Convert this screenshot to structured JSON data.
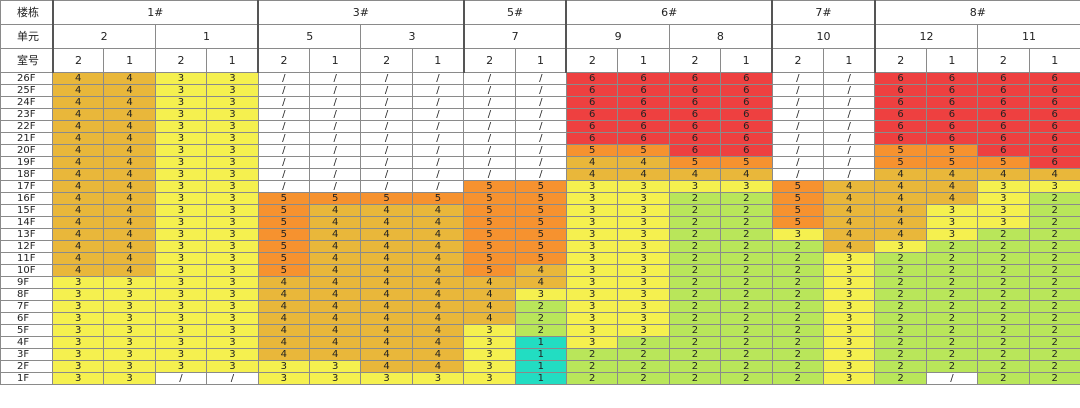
{
  "header_labels": {
    "building": "楼栋",
    "unit": "单元",
    "room": "室号"
  },
  "buildings": [
    {
      "name": "1#",
      "units": [
        {
          "name": "2",
          "rooms": [
            "2",
            "1"
          ]
        },
        {
          "name": "1",
          "rooms": [
            "2",
            "1"
          ]
        }
      ]
    },
    {
      "name": "3#",
      "units": [
        {
          "name": "5",
          "rooms": [
            "2",
            "1"
          ]
        },
        {
          "name": "3",
          "rooms": [
            "2",
            "1"
          ]
        }
      ]
    },
    {
      "name": "5#",
      "units": [
        {
          "name": "7",
          "rooms": [
            "2",
            "1"
          ]
        }
      ]
    },
    {
      "name": "6#",
      "units": [
        {
          "name": "9",
          "rooms": [
            "2",
            "1"
          ]
        },
        {
          "name": "8",
          "rooms": [
            "2",
            "1"
          ]
        }
      ]
    },
    {
      "name": "7#",
      "units": [
        {
          "name": "10",
          "rooms": [
            "2",
            "1"
          ]
        }
      ]
    },
    {
      "name": "8#",
      "units": [
        {
          "name": "12",
          "rooms": [
            "2",
            "1"
          ]
        },
        {
          "name": "11",
          "rooms": [
            "2",
            "1"
          ]
        }
      ]
    }
  ],
  "floors": [
    {
      "label": "26F",
      "cells": [
        "4",
        "4",
        "3",
        "3",
        "/",
        "/",
        "/",
        "/",
        "/",
        "/",
        "6",
        "6",
        "6",
        "6",
        "/",
        "/",
        "6",
        "6",
        "6",
        "6"
      ]
    },
    {
      "label": "25F",
      "cells": [
        "4",
        "4",
        "3",
        "3",
        "/",
        "/",
        "/",
        "/",
        "/",
        "/",
        "6",
        "6",
        "6",
        "6",
        "/",
        "/",
        "6",
        "6",
        "6",
        "6"
      ]
    },
    {
      "label": "24F",
      "cells": [
        "4",
        "4",
        "3",
        "3",
        "/",
        "/",
        "/",
        "/",
        "/",
        "/",
        "6",
        "6",
        "6",
        "6",
        "/",
        "/",
        "6",
        "6",
        "6",
        "6"
      ]
    },
    {
      "label": "23F",
      "cells": [
        "4",
        "4",
        "3",
        "3",
        "/",
        "/",
        "/",
        "/",
        "/",
        "/",
        "6",
        "6",
        "6",
        "6",
        "/",
        "/",
        "6",
        "6",
        "6",
        "6"
      ]
    },
    {
      "label": "22F",
      "cells": [
        "4",
        "4",
        "3",
        "3",
        "/",
        "/",
        "/",
        "/",
        "/",
        "/",
        "6",
        "6",
        "6",
        "6",
        "/",
        "/",
        "6",
        "6",
        "6",
        "6"
      ]
    },
    {
      "label": "21F",
      "cells": [
        "4",
        "4",
        "3",
        "3",
        "/",
        "/",
        "/",
        "/",
        "/",
        "/",
        "6",
        "6",
        "6",
        "6",
        "/",
        "/",
        "6",
        "6",
        "6",
        "6"
      ]
    },
    {
      "label": "20F",
      "cells": [
        "4",
        "4",
        "3",
        "3",
        "/",
        "/",
        "/",
        "/",
        "/",
        "/",
        "5",
        "5",
        "6",
        "6",
        "/",
        "/",
        "5",
        "5",
        "6",
        "6"
      ]
    },
    {
      "label": "19F",
      "cells": [
        "4",
        "4",
        "3",
        "3",
        "/",
        "/",
        "/",
        "/",
        "/",
        "/",
        "4",
        "4",
        "5",
        "5",
        "/",
        "/",
        "5",
        "5",
        "5",
        "6"
      ]
    },
    {
      "label": "18F",
      "cells": [
        "4",
        "4",
        "3",
        "3",
        "/",
        "/",
        "/",
        "/",
        "/",
        "/",
        "4",
        "4",
        "4",
        "4",
        "/",
        "/",
        "4",
        "4",
        "4",
        "4"
      ]
    },
    {
      "label": "17F",
      "cells": [
        "4",
        "4",
        "3",
        "3",
        "/",
        "/",
        "/",
        "/",
        "5",
        "5",
        "3",
        "3",
        "3",
        "3",
        "5",
        "4",
        "4",
        "4",
        "3",
        "3"
      ]
    },
    {
      "label": "16F",
      "cells": [
        "4",
        "4",
        "3",
        "3",
        "5",
        "5",
        "5",
        "5",
        "5",
        "5",
        "3",
        "3",
        "2",
        "2",
        "5",
        "4",
        "4",
        "4",
        "3",
        "2"
      ]
    },
    {
      "label": "15F",
      "cells": [
        "4",
        "4",
        "3",
        "3",
        "5",
        "4",
        "4",
        "4",
        "5",
        "5",
        "3",
        "3",
        "2",
        "2",
        "5",
        "4",
        "4",
        "3",
        "3",
        "2"
      ]
    },
    {
      "label": "14F",
      "cells": [
        "4",
        "4",
        "3",
        "3",
        "5",
        "4",
        "4",
        "4",
        "5",
        "5",
        "3",
        "3",
        "2",
        "2",
        "5",
        "4",
        "4",
        "3",
        "3",
        "2"
      ]
    },
    {
      "label": "13F",
      "cells": [
        "4",
        "4",
        "3",
        "3",
        "5",
        "4",
        "4",
        "4",
        "5",
        "5",
        "3",
        "3",
        "2",
        "2",
        "3",
        "4",
        "4",
        "3",
        "2",
        "2"
      ]
    },
    {
      "label": "12F",
      "cells": [
        "4",
        "4",
        "3",
        "3",
        "5",
        "4",
        "4",
        "4",
        "5",
        "5",
        "3",
        "3",
        "2",
        "2",
        "2",
        "4",
        "3",
        "2",
        "2",
        "2"
      ]
    },
    {
      "label": "11F",
      "cells": [
        "4",
        "4",
        "3",
        "3",
        "5",
        "4",
        "4",
        "4",
        "5",
        "5",
        "3",
        "3",
        "2",
        "2",
        "2",
        "3",
        "2",
        "2",
        "2",
        "2"
      ]
    },
    {
      "label": "10F",
      "cells": [
        "4",
        "4",
        "3",
        "3",
        "5",
        "4",
        "4",
        "4",
        "5",
        "4",
        "3",
        "3",
        "2",
        "2",
        "2",
        "3",
        "2",
        "2",
        "2",
        "2"
      ]
    },
    {
      "label": "9F",
      "cells": [
        "3",
        "3",
        "3",
        "3",
        "4",
        "4",
        "4",
        "4",
        "4",
        "4",
        "3",
        "3",
        "2",
        "2",
        "2",
        "3",
        "2",
        "2",
        "2",
        "2"
      ]
    },
    {
      "label": "8F",
      "cells": [
        "3",
        "3",
        "3",
        "3",
        "4",
        "4",
        "4",
        "4",
        "4",
        "3",
        "3",
        "3",
        "2",
        "2",
        "2",
        "3",
        "2",
        "2",
        "2",
        "2"
      ]
    },
    {
      "label": "7F",
      "cells": [
        "3",
        "3",
        "3",
        "3",
        "4",
        "4",
        "4",
        "4",
        "4",
        "2",
        "3",
        "3",
        "2",
        "2",
        "2",
        "3",
        "2",
        "2",
        "2",
        "2"
      ]
    },
    {
      "label": "6F",
      "cells": [
        "3",
        "3",
        "3",
        "3",
        "4",
        "4",
        "4",
        "4",
        "4",
        "2",
        "3",
        "3",
        "2",
        "2",
        "2",
        "3",
        "2",
        "2",
        "2",
        "2"
      ]
    },
    {
      "label": "5F",
      "cells": [
        "3",
        "3",
        "3",
        "3",
        "4",
        "4",
        "4",
        "4",
        "3",
        "2",
        "3",
        "3",
        "2",
        "2",
        "2",
        "3",
        "2",
        "2",
        "2",
        "2"
      ]
    },
    {
      "label": "4F",
      "cells": [
        "3",
        "3",
        "3",
        "3",
        "4",
        "4",
        "4",
        "4",
        "3",
        "1",
        "3",
        "2",
        "2",
        "2",
        "2",
        "3",
        "2",
        "2",
        "2",
        "2"
      ]
    },
    {
      "label": "3F",
      "cells": [
        "3",
        "3",
        "3",
        "3",
        "4",
        "4",
        "4",
        "4",
        "3",
        "1",
        "2",
        "2",
        "2",
        "2",
        "2",
        "3",
        "2",
        "2",
        "2",
        "2"
      ]
    },
    {
      "label": "2F",
      "cells": [
        "3",
        "3",
        "3",
        "3",
        "3",
        "3",
        "4",
        "4",
        "3",
        "1",
        "2",
        "2",
        "2",
        "2",
        "2",
        "3",
        "2",
        "2",
        "2",
        "2"
      ]
    },
    {
      "label": "1F",
      "cells": [
        "3",
        "3",
        "/",
        "/",
        "3",
        "3",
        "3",
        "3",
        "3",
        "1",
        "2",
        "2",
        "2",
        "2",
        "2",
        "3",
        "2",
        "/",
        "2",
        "2"
      ]
    }
  ],
  "colors": {
    "6": "#ee4040",
    "5": "#f6922f",
    "4": "#e9b73a",
    "3": "#f5f04f",
    "2": "#b9e65a",
    "1": "#22ddc2",
    "/": "#ffffff"
  }
}
